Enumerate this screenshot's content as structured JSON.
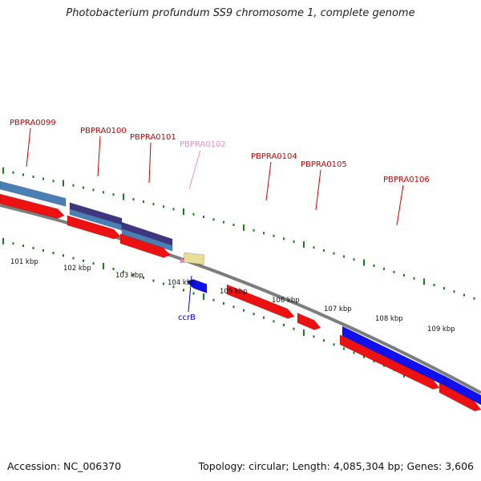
{
  "title": "Photobacterium profundum SS9 chromosome 1, complete genome",
  "accession": "Accession: NC_006370",
  "summary": "Topology: circular; Length: 4,085,304 bp; Genes: 3,606",
  "colors": {
    "cds_red": "#ee1111",
    "cds_blue": "#1010ee",
    "steel_blue": "#4a7fb5",
    "dark_purple": "#3f3580",
    "pink": "#f080c0",
    "khaki": "#e6df9a",
    "backbone": "#7d7d7d",
    "tick_green": "#1e7a1e",
    "label_red": "#cc0000",
    "label_pink": "#f090c8",
    "label_blue": "#0000cc"
  },
  "gene_labels": [
    {
      "text": "PBPRA0099",
      "color": "label_red"
    },
    {
      "text": "PBPRA0100",
      "color": "label_red"
    },
    {
      "text": "PBPRA0101",
      "color": "label_red"
    },
    {
      "text": "PBPRA0102",
      "color": "label_pink"
    },
    {
      "text": "PBPRA0104",
      "color": "label_red"
    },
    {
      "text": "PBPRA0105",
      "color": "label_red"
    },
    {
      "text": "PBPRA0106",
      "color": "label_red"
    },
    {
      "text": "ccrB",
      "color": "label_blue"
    }
  ],
  "kbp_labels": [
    "101 kbp",
    "102 kbp",
    "103 kbp",
    "104 kbp",
    "105 kbp",
    "106 kbp",
    "107 kbp",
    "108 kbp",
    "109 kbp"
  ]
}
